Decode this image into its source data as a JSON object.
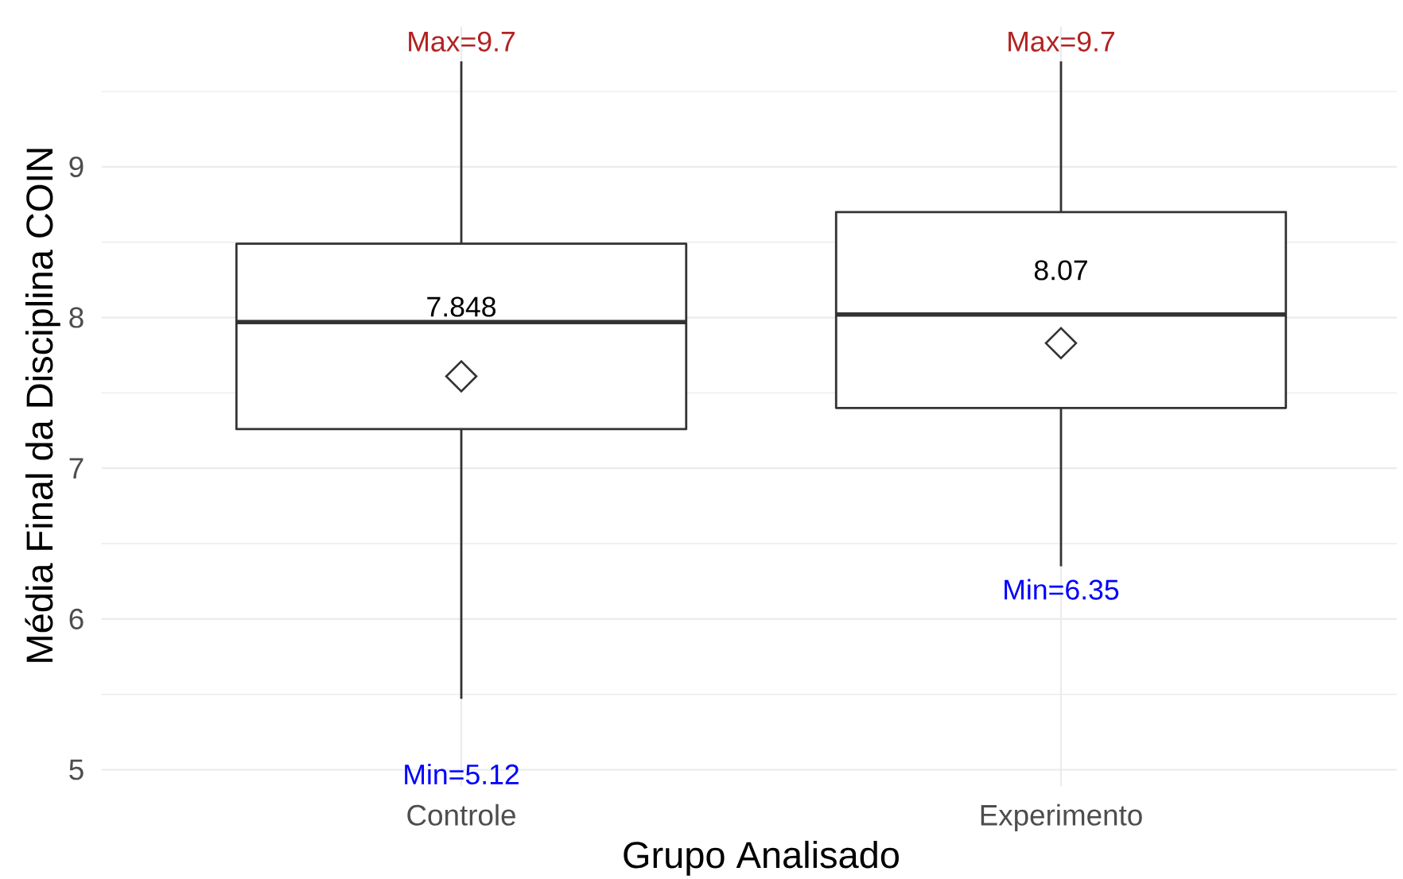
{
  "chart_data": {
    "type": "box",
    "xlabel": "Grupo Analisado",
    "ylabel": "Média Final da Disciplina COIN",
    "categories": [
      "Controle",
      "Experimento"
    ],
    "series": [
      {
        "color": "#333333",
        "boxes": [
          {
            "low": 5.47,
            "q1": 7.26,
            "median": 7.97,
            "q3": 8.49,
            "high": 9.7,
            "mean": 7.61
          },
          {
            "low": 6.35,
            "q1": 7.4,
            "median": 8.02,
            "q3": 8.7,
            "high": 9.7,
            "mean": 7.83
          }
        ]
      }
    ],
    "ylim": [
      4.89,
      9.93
    ],
    "yticks": [
      5,
      6,
      7,
      8,
      9,
      {
        "value": 5.5,
        "label": null
      },
      {
        "value": 6.5,
        "label": null
      },
      {
        "value": 7.5,
        "label": null
      },
      {
        "value": 8.5,
        "label": null
      },
      {
        "value": 9.5,
        "label": null
      }
    ],
    "grid": true,
    "marker": "diamond",
    "annotations": [
      {
        "text": "Max=9.7",
        "x": "Controle",
        "y": 9.7
      },
      "Min=5.12",
      "7.848",
      {
        "text": "Max=9.7",
        "x": "Experimento",
        "y": 9.7
      },
      {
        "text": "Min=6.35",
        "x": "Experimento",
        "y": 6.35
      },
      "8.07"
    ]
  }
}
